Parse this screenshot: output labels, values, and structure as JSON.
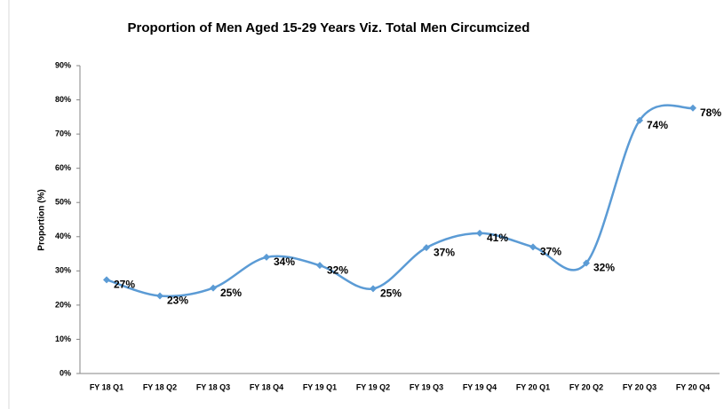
{
  "chart_data": {
    "type": "line",
    "title": "Proportion of Men Aged 15-29 Years Viz. Total Men Circumcized",
    "y_label": "Proportion (%)",
    "categories": [
      "FY 18 Q1",
      "FY 18 Q2",
      "FY 18 Q3",
      "FY 18 Q4",
      "FY 19 Q1",
      "FY 19 Q2",
      "FY 19 Q3",
      "FY 19 Q4",
      "FY 20 Q1",
      "FY 20 Q2",
      "FY 20 Q3",
      "FY 20 Q4"
    ],
    "series": [
      {
        "name": "Proportion",
        "color": "#5b9bd5",
        "values": [
          27.4,
          22.7,
          25,
          34,
          31.6,
          24.8,
          36.8,
          41,
          37,
          32.3,
          74,
          77.6
        ],
        "value_labels": [
          "27%",
          "23%",
          "25%",
          "34%",
          "32%",
          "25%",
          "37%",
          "41%",
          "37%",
          "32%",
          "74%",
          "78%"
        ]
      }
    ],
    "ylim": [
      0,
      90
    ],
    "yticks": [
      {
        "value": 0,
        "label": "0%"
      },
      {
        "value": 10,
        "label": "10%"
      },
      {
        "value": 20,
        "label": "20%"
      },
      {
        "value": 30,
        "label": "30%"
      },
      {
        "value": 40,
        "label": "40%"
      },
      {
        "value": 50,
        "label": "50%"
      },
      {
        "value": 60,
        "label": "60%"
      },
      {
        "value": 70,
        "label": "70%"
      },
      {
        "value": 80,
        "label": "80%"
      },
      {
        "value": 90,
        "label": "90%"
      }
    ],
    "grid": false,
    "smooth": true
  }
}
